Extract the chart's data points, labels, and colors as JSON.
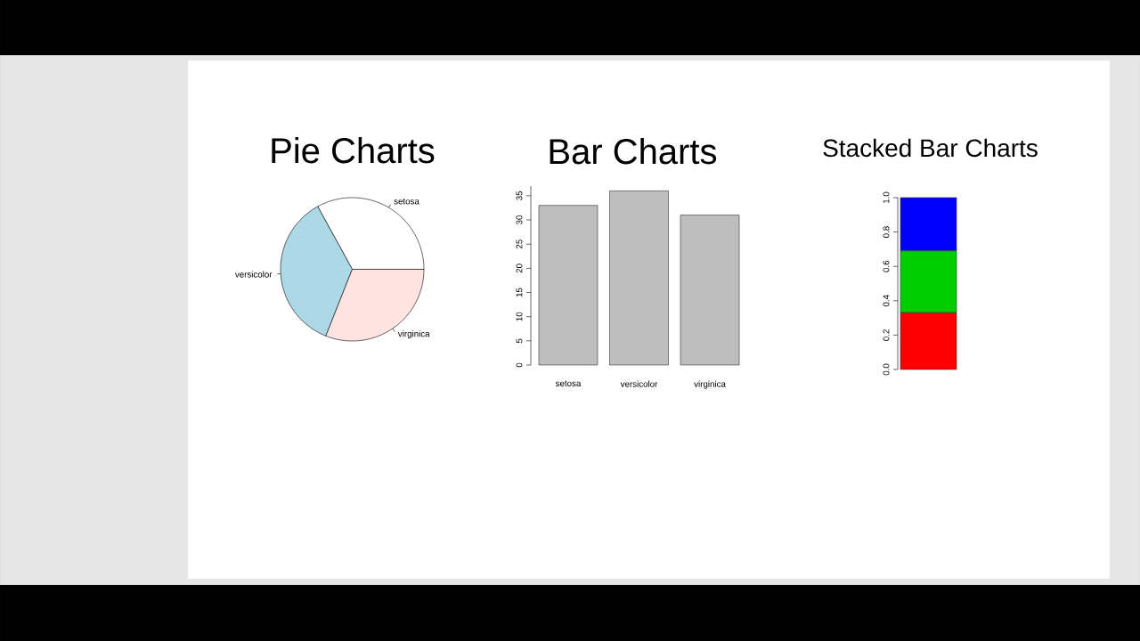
{
  "chart_data": [
    {
      "type": "pie",
      "title": "Pie Charts",
      "categories": [
        "setosa",
        "versicolor",
        "virginica"
      ],
      "values": [
        33,
        36,
        31
      ],
      "colors": [
        "#ffffff",
        "#add8e6",
        "#ffe4e1"
      ]
    },
    {
      "type": "bar",
      "title": "Bar Charts",
      "categories": [
        "setosa",
        "versicolor",
        "virginica"
      ],
      "values": [
        33,
        36,
        31
      ],
      "color": "#bebebe",
      "ylim": [
        0,
        37
      ],
      "yticks": [
        0,
        5,
        10,
        15,
        20,
        25,
        30,
        35
      ]
    },
    {
      "type": "bar",
      "title": "Stacked Bar Charts",
      "stacked": true,
      "categories": [
        null
      ],
      "series": [
        {
          "color": "#ff0000",
          "values": [
            0.33
          ]
        },
        {
          "color": "#00cd00",
          "values": [
            0.36
          ]
        },
        {
          "color": "#0000ff",
          "values": [
            0.31
          ]
        }
      ],
      "ylim": [
        0,
        1
      ],
      "yticks": [
        {
          "value": 0,
          "label": "0.0"
        },
        {
          "value": 0.2,
          "label": "0.2"
        },
        {
          "value": 0.4,
          "label": "0.4"
        },
        {
          "value": 0.6,
          "label": "0.6"
        },
        {
          "value": 0.8,
          "label": "0.8"
        },
        {
          "value": 1,
          "label": "1.0"
        }
      ]
    }
  ]
}
